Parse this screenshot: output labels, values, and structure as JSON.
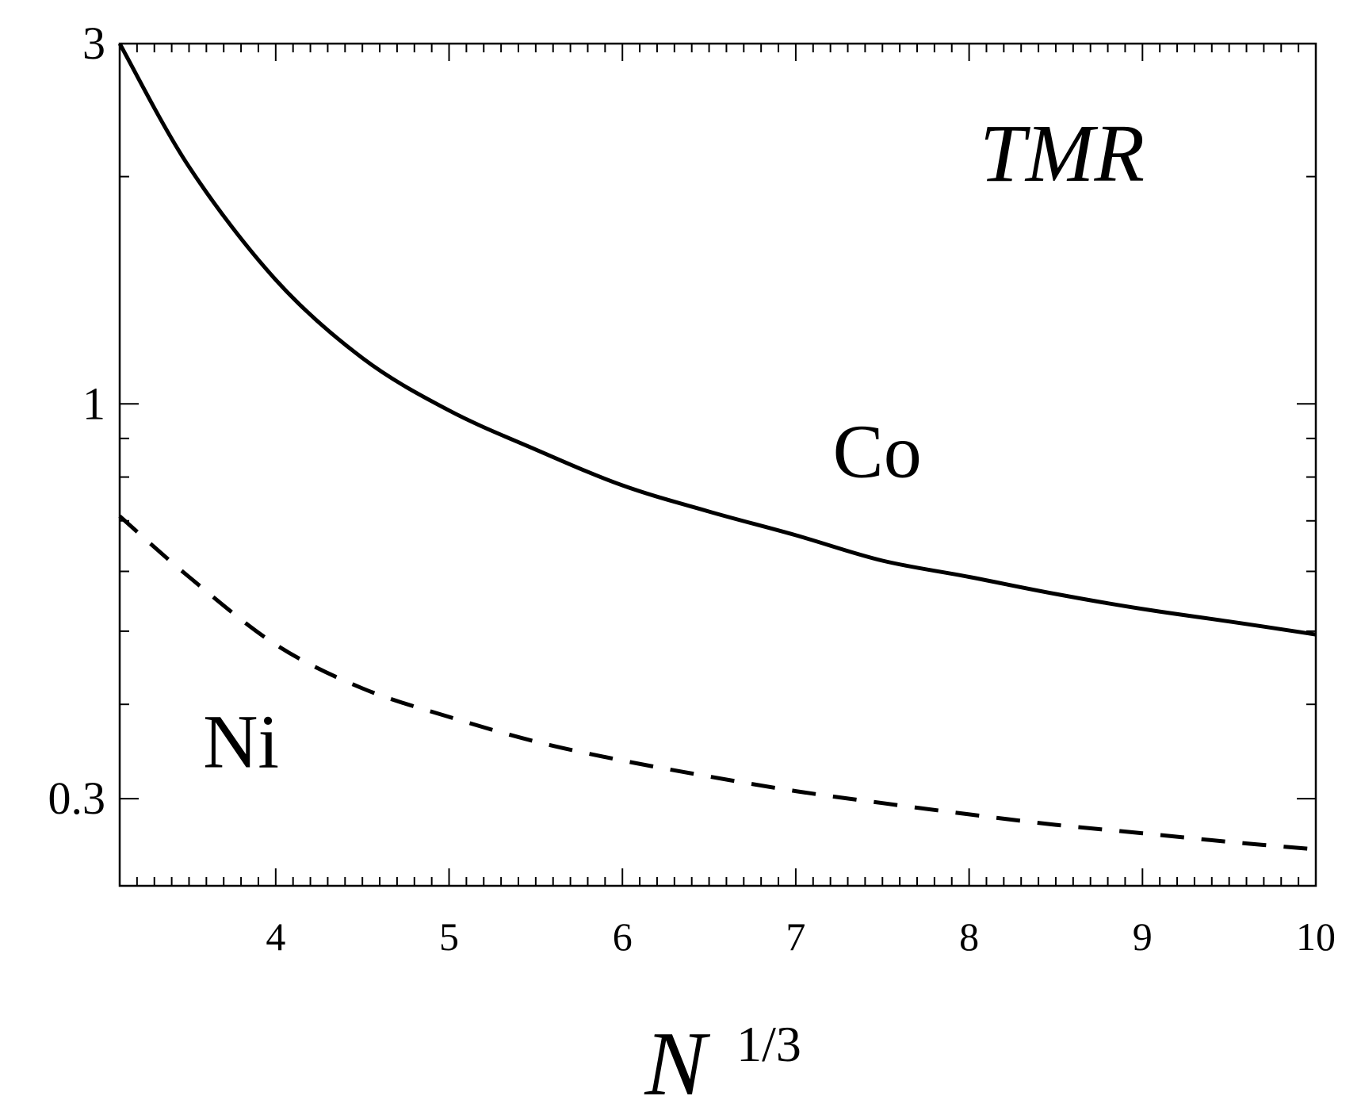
{
  "chart_data": {
    "type": "line",
    "title": "",
    "annotation": "TMR",
    "xlabel": {
      "base": "N",
      "sup": "1/3"
    },
    "ylabel": "",
    "xlim": [
      3.1,
      10
    ],
    "ylim": [
      0.23,
      3
    ],
    "yscale": "log",
    "grid": false,
    "legend": "none",
    "x_ticks": [
      {
        "v": 4,
        "label": "4"
      },
      {
        "v": 5,
        "label": "5"
      },
      {
        "v": 6,
        "label": "6"
      },
      {
        "v": 7,
        "label": "7"
      },
      {
        "v": 8,
        "label": "8"
      },
      {
        "v": 9,
        "label": "9"
      },
      {
        "v": 10,
        "label": "10"
      }
    ],
    "y_ticks": [
      {
        "v": 0.3,
        "label": "0.3"
      },
      {
        "v": 1,
        "label": "1"
      },
      {
        "v": 3,
        "label": "3"
      }
    ],
    "y_minor_ticks": [
      0.4,
      0.5,
      0.6,
      0.7,
      0.8,
      0.9,
      2
    ],
    "series": [
      {
        "name": "Co",
        "style": "solid",
        "color": "#000000",
        "x": [
          3.1,
          3.5,
          4.0,
          4.5,
          5.0,
          5.5,
          6.0,
          6.5,
          7.0,
          7.5,
          8.0,
          8.5,
          9.0,
          9.5,
          10.0
        ],
        "y": [
          3.0,
          2.06,
          1.46,
          1.15,
          0.98,
          0.87,
          0.78,
          0.72,
          0.67,
          0.62,
          0.59,
          0.56,
          0.535,
          0.515,
          0.495
        ]
      },
      {
        "name": "Ni",
        "style": "dashed",
        "color": "#000000",
        "x": [
          3.1,
          3.5,
          4.0,
          4.5,
          5.0,
          5.5,
          6.0,
          6.5,
          7.0,
          7.5,
          8.0,
          8.5,
          9.0,
          9.5,
          10.0
        ],
        "y": [
          0.71,
          0.59,
          0.48,
          0.42,
          0.385,
          0.357,
          0.337,
          0.321,
          0.307,
          0.296,
          0.286,
          0.277,
          0.27,
          0.263,
          0.257
        ]
      }
    ],
    "series_labels": [
      {
        "text": "Co",
        "x": 7.47,
        "y": 0.8
      },
      {
        "text": "Ni",
        "x": 3.8,
        "y": 0.33
      }
    ]
  }
}
